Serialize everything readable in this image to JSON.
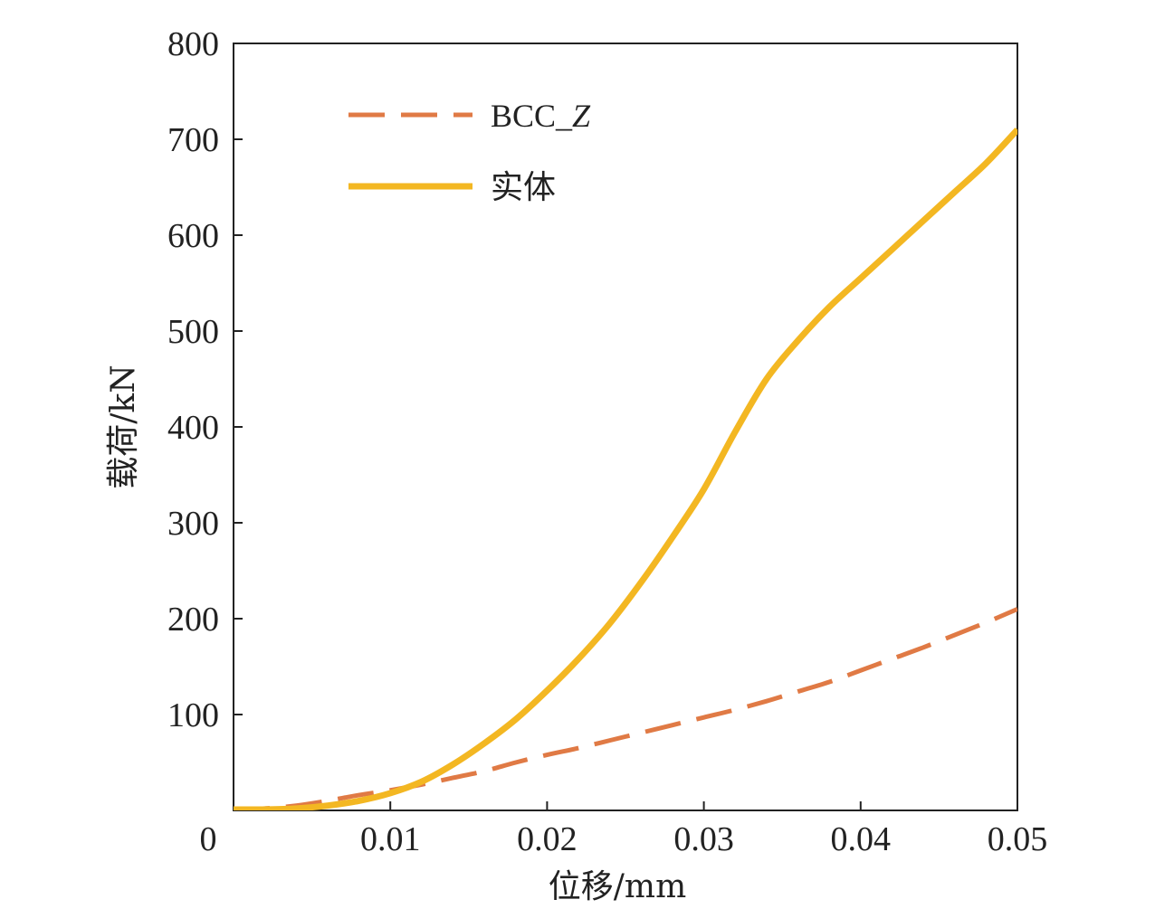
{
  "chart_data": {
    "type": "line",
    "xlabel": "位移/mm",
    "ylabel": "载荷/kN",
    "xlim": [
      0,
      0.05
    ],
    "ylim": [
      0,
      800
    ],
    "xticks": [
      "0",
      "0.01",
      "0.02",
      "0.03",
      "0.04",
      "0.05"
    ],
    "yticks": [
      "100",
      "200",
      "300",
      "400",
      "500",
      "600",
      "700",
      "800"
    ],
    "xtick_values": [
      0,
      0.01,
      0.02,
      0.03,
      0.04,
      0.05
    ],
    "ytick_values": [
      100,
      200,
      300,
      400,
      500,
      600,
      700,
      800
    ],
    "grid": false,
    "legend_position": "top-left",
    "series": [
      {
        "name": "BCC_Z",
        "name_main": "BCC_",
        "name_italic": "Z",
        "color": "#e07a45",
        "style": "dashed",
        "x": [
          0,
          0.002,
          0.004,
          0.006,
          0.008,
          0.01,
          0.012,
          0.014,
          0.016,
          0.018,
          0.02,
          0.022,
          0.024,
          0.026,
          0.028,
          0.03,
          0.032,
          0.034,
          0.036,
          0.038,
          0.04,
          0.042,
          0.044,
          0.046,
          0.048,
          0.05
        ],
        "y": [
          1,
          2,
          5,
          10,
          16,
          21,
          27,
          34,
          41,
          50,
          58,
          65,
          73,
          81,
          89,
          97,
          105,
          114,
          124,
          134,
          146,
          158,
          170,
          183,
          196,
          210
        ]
      },
      {
        "name": "实体",
        "color": "#f3b722",
        "style": "solid",
        "x": [
          0,
          0.002,
          0.004,
          0.006,
          0.008,
          0.01,
          0.012,
          0.014,
          0.016,
          0.018,
          0.02,
          0.022,
          0.024,
          0.026,
          0.028,
          0.03,
          0.032,
          0.034,
          0.036,
          0.038,
          0.04,
          0.042,
          0.044,
          0.046,
          0.048,
          0.05
        ],
        "y": [
          1,
          1,
          2,
          5,
          10,
          18,
          30,
          48,
          70,
          95,
          125,
          158,
          195,
          238,
          285,
          335,
          395,
          450,
          490,
          525,
          555,
          585,
          615,
          645,
          675,
          710
        ]
      }
    ]
  }
}
